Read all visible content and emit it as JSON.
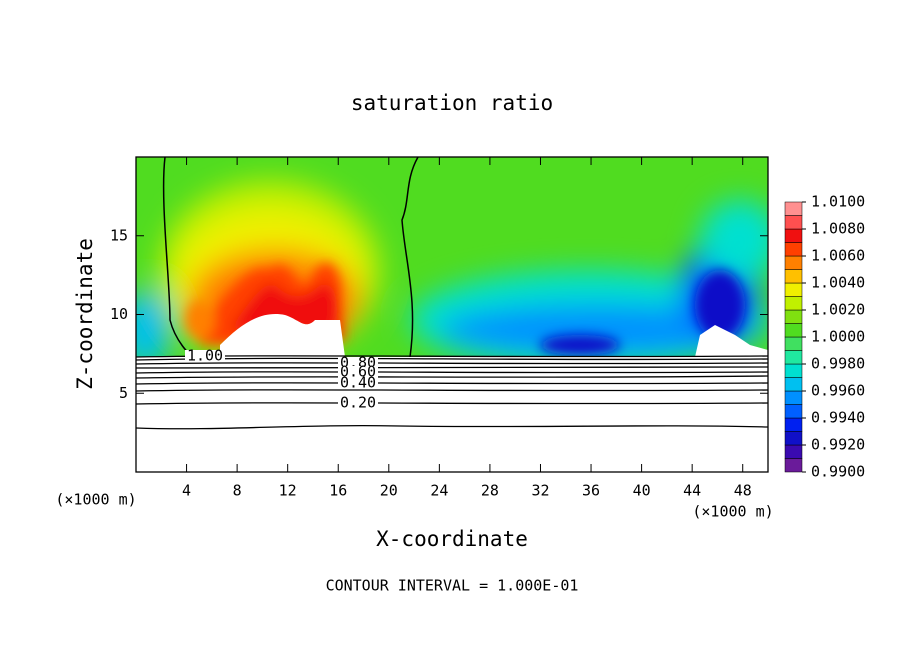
{
  "chart_data": {
    "type": "contour",
    "title": "saturation ratio",
    "x_label": "X-coordinate",
    "y_label": "Z-coordinate",
    "x_unit_left": "(×1000 m)",
    "x_unit_right": "(×1000 m)",
    "footer": "CONTOUR INTERVAL = 1.000E-01",
    "xlim": [
      0,
      50
    ],
    "ylim": [
      0,
      20
    ],
    "xticks": [
      4,
      8,
      12,
      16,
      20,
      24,
      28,
      32,
      36,
      40,
      44,
      48
    ],
    "yticks": [
      5,
      10,
      15
    ],
    "clim": [
      0.99,
      1.01
    ],
    "cticks": [
      {
        "value": 1.01,
        "label": "1.0100"
      },
      {
        "value": 1.008,
        "label": "1.0080"
      },
      {
        "value": 1.006,
        "label": "1.0060"
      },
      {
        "value": 1.004,
        "label": "1.0040"
      },
      {
        "value": 1.002,
        "label": "1.0020"
      },
      {
        "value": 1.0,
        "label": "1.0000"
      },
      {
        "value": 0.998,
        "label": "0.9980"
      },
      {
        "value": 0.996,
        "label": "0.9960"
      },
      {
        "value": 0.994,
        "label": "0.9940"
      },
      {
        "value": 0.992,
        "label": "0.9920"
      },
      {
        "value": 0.99,
        "label": "0.9900"
      }
    ],
    "colors": [
      "#6a1b9a",
      "#3a0ab0",
      "#1010c8",
      "#0020f0",
      "#0060ff",
      "#0090ff",
      "#00c0f0",
      "#00e0d0",
      "#20e8a0",
      "#40e060",
      "#50dc20",
      "#80e010",
      "#c0f000",
      "#f0f000",
      "#ffc000",
      "#ff8000",
      "#ff4000",
      "#f01010",
      "#ff5050",
      "#ff9090"
    ],
    "contour_levels": [
      {
        "value": 1,
        "label": "1.00"
      },
      {
        "value": 0.8,
        "label": "0.80"
      },
      {
        "value": 0.6,
        "label": "0.60"
      },
      {
        "value": 0.4,
        "label": "0.40"
      },
      {
        "value": 0.2,
        "label": "0.20"
      }
    ]
  }
}
